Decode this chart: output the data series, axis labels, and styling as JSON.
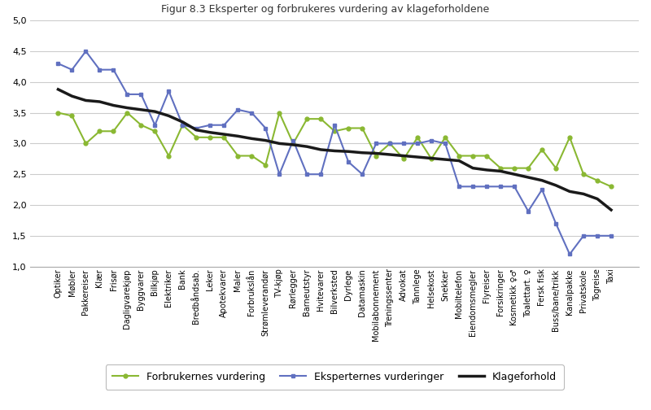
{
  "categories": [
    "Optiker",
    "Møbler",
    "Pakkereiser",
    "Klær",
    "Frisør",
    "Dagligvarekjøp",
    "Byggvarer",
    "Bilkjøp",
    "Elektriker",
    "Bank",
    "Bredbåndsab.",
    "Leker",
    "Apotekvarer",
    "Maler",
    "Forbrukslån",
    "Strømleverandør",
    "TV-kjøp",
    "Rørlegger",
    "Barneutstyr",
    "Hvitevarer",
    "Bilverksted",
    "Dyrlege",
    "Datamaskin",
    "Mobilabonnement",
    "Treningssenter",
    "Advokat",
    "Tannlege",
    "Helsekost",
    "Snekker",
    "Mobiltelefon",
    "Eiendomsmegler",
    "Flyreiser",
    "Forsikringer",
    "Kosmetikk ♀♂",
    "Toalettart. ♀",
    "Fersk fisk",
    "Buss/bane/trikk",
    "Kanalpakke",
    "Privatskole",
    "Togreise",
    "Taxi"
  ],
  "forbrukernes": [
    3.5,
    3.45,
    3.0,
    3.2,
    3.2,
    3.5,
    3.3,
    3.2,
    2.8,
    3.3,
    3.1,
    3.1,
    3.1,
    2.8,
    2.8,
    2.65,
    3.5,
    3.0,
    3.4,
    3.4,
    3.2,
    3.25,
    3.25,
    2.8,
    3.0,
    2.75,
    3.1,
    2.75,
    3.1,
    2.8,
    2.8,
    2.8,
    2.6,
    2.6,
    2.6,
    2.9,
    2.6,
    3.1,
    2.5,
    2.4,
    2.3
  ],
  "eksperternes": [
    4.3,
    4.2,
    4.5,
    4.2,
    4.2,
    3.8,
    3.8,
    3.3,
    3.85,
    3.3,
    3.25,
    3.3,
    3.3,
    3.55,
    3.5,
    3.25,
    2.5,
    3.05,
    2.5,
    2.5,
    3.3,
    2.7,
    2.5,
    3.0,
    3.0,
    3.0,
    3.0,
    3.05,
    3.0,
    2.3,
    2.3,
    2.3,
    2.3,
    2.3,
    1.9,
    2.25,
    1.7,
    1.2,
    1.5,
    1.5,
    1.5
  ],
  "klageforhold": [
    3.88,
    3.77,
    3.7,
    3.68,
    3.62,
    3.58,
    3.55,
    3.52,
    3.45,
    3.35,
    3.22,
    3.18,
    3.15,
    3.12,
    3.08,
    3.05,
    3.0,
    2.98,
    2.95,
    2.9,
    2.88,
    2.87,
    2.85,
    2.84,
    2.82,
    2.8,
    2.78,
    2.76,
    2.74,
    2.72,
    2.6,
    2.57,
    2.55,
    2.5,
    2.45,
    2.4,
    2.32,
    2.22,
    2.18,
    2.1,
    1.92
  ],
  "title": "Figur 8.3 Eksperter og forbrukeres vurdering av klageforholdene",
  "forbrukernes_color": "#8ab832",
  "eksperternes_color": "#6070c0",
  "klageforhold_color": "#1a1a1a",
  "ylim": [
    1.0,
    5.0
  ],
  "yticks": [
    1.0,
    1.5,
    2.0,
    2.5,
    3.0,
    3.5,
    4.0,
    4.5,
    5.0
  ],
  "legend_forbrukernes": "Forbrukernes vurdering",
  "legend_eksperternes": "Eksperternes vurderinger",
  "legend_klageforhold": "Klageforhold"
}
